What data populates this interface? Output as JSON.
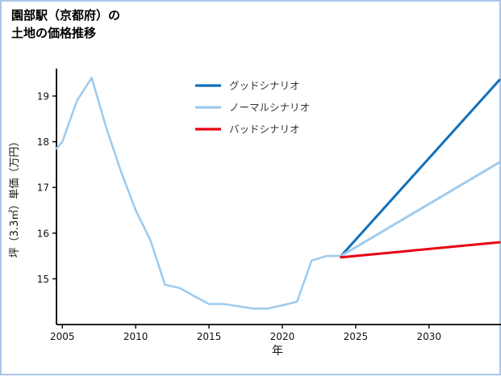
{
  "page": {
    "title_line1": "園部駅（京都府）の",
    "title_line2": "土地の価格推移",
    "border_color": "#a9c6e8"
  },
  "chart_data": {
    "type": "line",
    "title": "園部駅（京都府）の土地の価格推移",
    "xlabel": "年",
    "ylabel": "坪（3.3㎡）単価（万円）",
    "xlim": [
      2004.6,
      2034.8
    ],
    "ylim": [
      14.0,
      19.6
    ],
    "x_ticks": [
      2005,
      2010,
      2015,
      2020,
      2025,
      2030
    ],
    "y_ticks": [
      15,
      16,
      17,
      18,
      19
    ],
    "grid": false,
    "legend_position": "upper-center",
    "series": [
      {
        "key": "history",
        "in_legend": false,
        "color": "#9fcbed",
        "width": 2.6,
        "x": [
          2004.6,
          2005,
          2006,
          2007,
          2008,
          2009,
          2010,
          2011,
          2012,
          2013,
          2014,
          2015,
          2016,
          2017,
          2018,
          2019,
          2020,
          2021,
          2022,
          2023,
          2024
        ],
        "values": [
          17.85,
          18.0,
          18.9,
          19.4,
          18.3,
          17.35,
          16.5,
          15.85,
          14.87,
          14.8,
          14.62,
          14.45,
          14.45,
          14.4,
          14.35,
          14.35,
          14.42,
          14.5,
          15.4,
          15.5,
          15.5
        ]
      },
      {
        "key": "good",
        "name": "グッドシナリオ",
        "in_legend": true,
        "color": "#1170ba",
        "width": 3,
        "x": [
          2024,
          2034.8
        ],
        "values": [
          15.5,
          19.35
        ]
      },
      {
        "key": "normal",
        "name": "ノーマルシナリオ",
        "in_legend": true,
        "color": "#9fcbed",
        "width": 3,
        "x": [
          2024,
          2034.8
        ],
        "values": [
          15.5,
          17.55
        ]
      },
      {
        "key": "bad",
        "name": "バッドシナリオ",
        "in_legend": true,
        "color": "#e60012",
        "width": 3,
        "x": [
          2024,
          2034.8
        ],
        "values": [
          15.47,
          15.8
        ]
      }
    ]
  }
}
